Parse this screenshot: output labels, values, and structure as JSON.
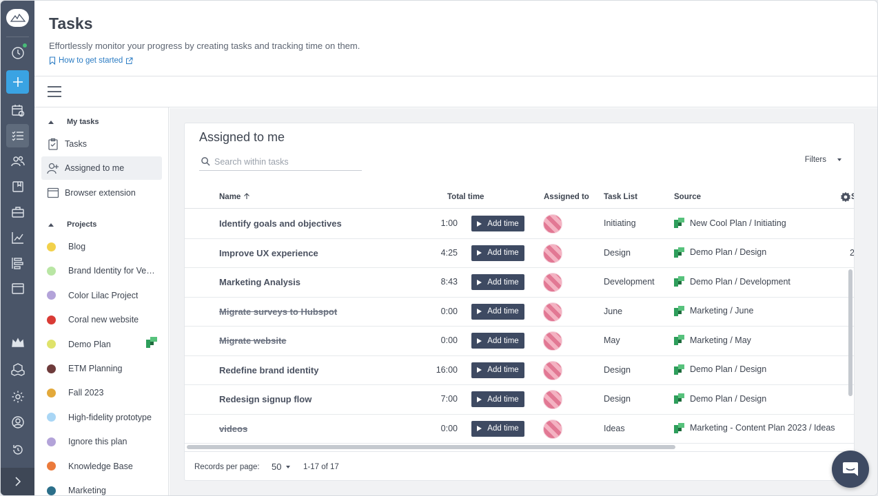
{
  "header": {
    "title": "Tasks",
    "subtitle": "Effortlessly monitor your progress by creating tasks and tracking time on them.",
    "help_link": "How to get started"
  },
  "sidebar": {
    "my_tasks_heading": "My tasks",
    "items": [
      {
        "label": "Tasks"
      },
      {
        "label": "Assigned to me"
      },
      {
        "label": "Browser extension"
      }
    ],
    "projects_heading": "Projects",
    "projects": [
      {
        "name": "Blog",
        "color": "#f2d14b"
      },
      {
        "name": "Brand Identity for Vegan Bakery",
        "color": "#b9e6a4"
      },
      {
        "name": "Color Lilac Project",
        "color": "#b3a3d9"
      },
      {
        "name": "Coral new website",
        "color": "#d93b35"
      },
      {
        "name": "Demo Plan",
        "color": "#dfe36b"
      },
      {
        "name": "ETM Planning",
        "color": "#6e3b3b"
      },
      {
        "name": "Fall 2023",
        "color": "#e3a93b"
      },
      {
        "name": "High-fidelity prototype",
        "color": "#a9d6f5"
      },
      {
        "name": "Ignore this plan",
        "color": "#b3a3d9"
      },
      {
        "name": "Knowledge Base",
        "color": "#eb7a3b"
      },
      {
        "name": "Marketing",
        "color": "#2b6f8a"
      }
    ]
  },
  "main": {
    "title": "Assigned to me",
    "search_placeholder": "Search within tasks",
    "filters_label": "Filters",
    "columns": {
      "name": "Name",
      "total_time": "Total time",
      "assigned_to": "Assigned to",
      "task_list": "Task List",
      "source": "Source",
      "extra": "S"
    },
    "add_time_label": "Add time",
    "rows": [
      {
        "name": "Identify goals and objectives",
        "time": "1:00",
        "list": "Initiating",
        "source": "New Cool Plan / Initiating",
        "done": false,
        "extra": ""
      },
      {
        "name": "Improve UX experience",
        "time": "4:25",
        "list": "Design",
        "source": "Demo Plan / Design",
        "done": false,
        "extra": "2"
      },
      {
        "name": "Marketing Analysis",
        "time": "8:43",
        "list": "Development",
        "source": "Demo Plan / Development",
        "done": false,
        "extra": ""
      },
      {
        "name": "Migrate surveys to Hubspot",
        "time": "0:00",
        "list": "June",
        "source": "Marketing / June",
        "done": true,
        "extra": ""
      },
      {
        "name": "Migrate website",
        "time": "0:00",
        "list": "May",
        "source": "Marketing / May",
        "done": true,
        "extra": ""
      },
      {
        "name": "Redefine brand identity",
        "time": "16:00",
        "list": "Design",
        "source": "Demo Plan / Design",
        "done": false,
        "extra": ""
      },
      {
        "name": "Redesign signup flow",
        "time": "7:00",
        "list": "Design",
        "source": "Demo Plan / Design",
        "done": false,
        "extra": ""
      },
      {
        "name": "videos",
        "time": "0:00",
        "list": "Ideas",
        "source": "Marketing - Content Plan 2023 / Ideas",
        "done": true,
        "extra": ""
      }
    ],
    "footer": {
      "records_label": "Records per page:",
      "per_page": "50",
      "range": "1-17 of 17"
    }
  }
}
